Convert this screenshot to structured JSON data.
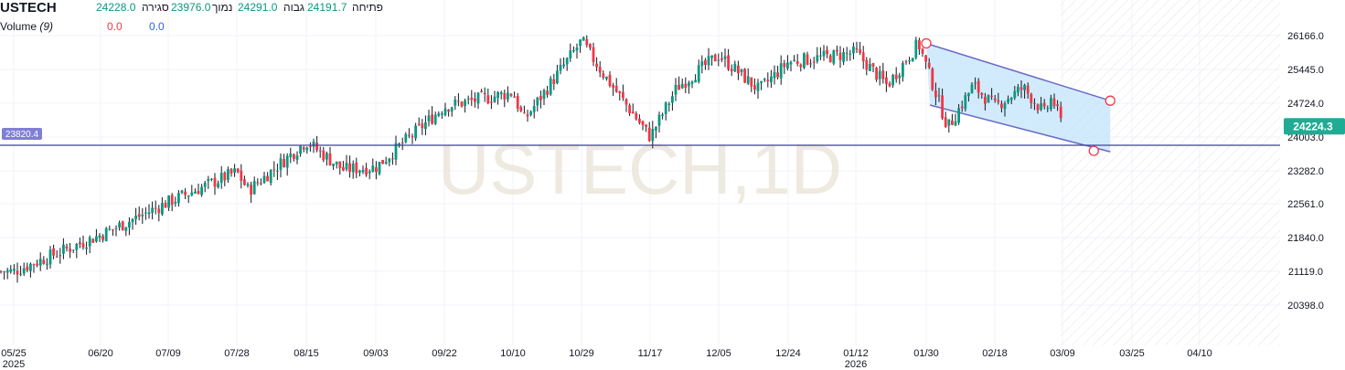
{
  "header": {
    "symbol": "USTECH",
    "open_label": "פתיחה",
    "open": "24191.7",
    "high_label": "גבוה",
    "high": "24291.0",
    "low_label": "נמוך",
    "low": "23976.0",
    "close_label": "סגירה",
    "close": "24228.0",
    "volume_label": "Volume",
    "volume_period": "(9)",
    "volume_v1": "0.0",
    "volume_v2": "0.0"
  },
  "watermark": "USTECH,1D",
  "colors": {
    "up": "#089981",
    "down": "#f23645",
    "level_line": "#3f3fa8",
    "channel_fill": "#bfe3fb",
    "channel_line": "#6a6ac8",
    "last_price_badge": "#22ab94",
    "level_badge": "#7f7fd6"
  },
  "chart_data": {
    "type": "candlestick",
    "symbol": "USTECH",
    "timeframe": "1D",
    "y_axis_ticks": [
      26166.0,
      25445.0,
      24724.0,
      24003.0,
      23282.0,
      22561.0,
      21840.0,
      21119.0,
      20398.0
    ],
    "y_axis_labels": [
      "26166.0",
      "25445.0",
      "24724.0",
      "24003.0",
      "23282.0",
      "22561.0",
      "21840.0",
      "21119.0",
      "20398.0"
    ],
    "ylim": [
      19400,
      26600
    ],
    "x_axis_labels": [
      "05/25",
      "06/20",
      "07/09",
      "07/28",
      "08/15",
      "09/03",
      "09/22",
      "10/10",
      "10/29",
      "11/17",
      "12/05",
      "12/24",
      "01/12",
      "01/30",
      "02/18",
      "03/09",
      "03/25",
      "04/10"
    ],
    "x_axis_year_labels": [
      {
        "at": "05/25",
        "text": "2025"
      },
      {
        "at": "01/12",
        "text": "2026"
      }
    ],
    "price_path": [
      [
        "05/25",
        21119
      ],
      [
        "06/20",
        21900
      ],
      [
        "07/09",
        22600
      ],
      [
        "07/28",
        23250
      ],
      [
        "07/31",
        22850
      ],
      [
        "08/15",
        23900
      ],
      [
        "08/25",
        23300
      ],
      [
        "09/03",
        23350
      ],
      [
        "09/22",
        24650
      ],
      [
        "10/10",
        24950
      ],
      [
        "10/13",
        24350
      ],
      [
        "10/29",
        26050
      ],
      [
        "11/04",
        25350
      ],
      [
        "11/17",
        24000
      ],
      [
        "11/24",
        25050
      ],
      [
        "12/05",
        25750
      ],
      [
        "12/16",
        25000
      ],
      [
        "12/24",
        25600
      ],
      [
        "01/12",
        25800
      ],
      [
        "01/20",
        25100
      ],
      [
        "01/28",
        26000
      ],
      [
        "02/05",
        24200
      ],
      [
        "02/12",
        25100
      ],
      [
        "02/18",
        24650
      ],
      [
        "02/26",
        25050
      ],
      [
        "03/04",
        24500
      ],
      [
        "03/06",
        24850
      ],
      [
        "03/09",
        24224
      ]
    ],
    "horizontal_level": {
      "value": 23820.4,
      "label": "23820.4"
    },
    "last_price": {
      "value": 24224.3,
      "label": "24224.3"
    },
    "channel": {
      "type": "parallel_channel",
      "upper": [
        [
          "01/30",
          26000
        ],
        [
          "03/20",
          24774
        ]
      ],
      "lower": [
        [
          "01/31",
          24680
        ],
        [
          "03/20",
          23680
        ]
      ]
    },
    "grid": true
  }
}
